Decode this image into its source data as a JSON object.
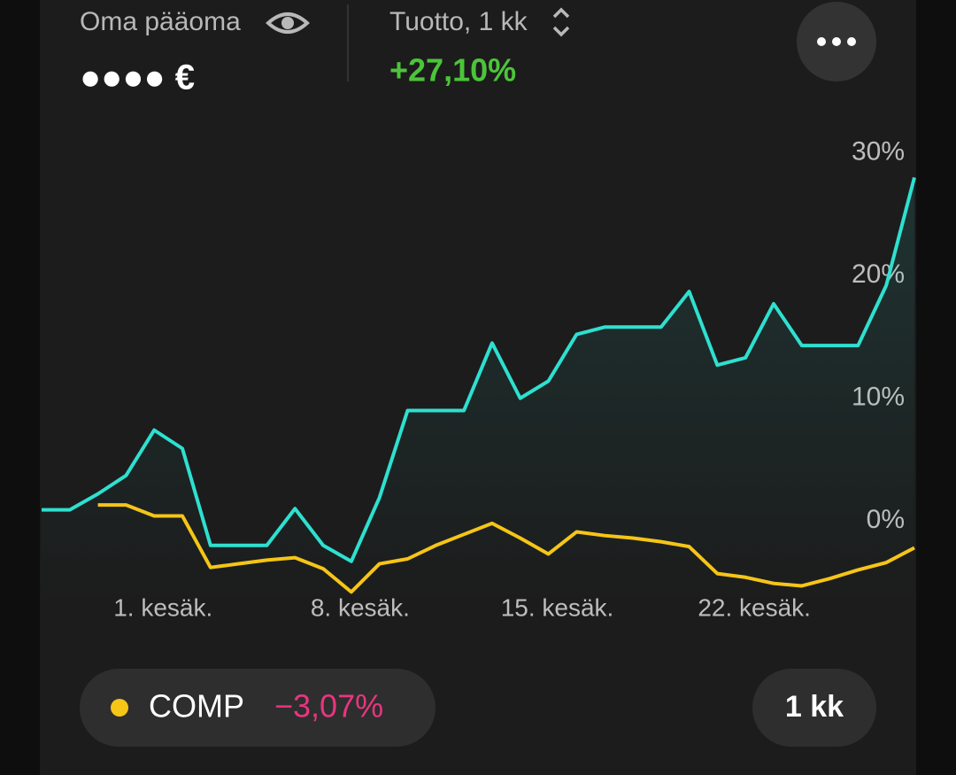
{
  "header": {
    "capital_label": "Oma pääoma",
    "capital_value": "●●●● €",
    "return_label": "Tuotto, 1 kk",
    "return_value": "+27,10%"
  },
  "chart_data": {
    "type": "line",
    "categories": [
      null,
      null,
      null,
      null,
      "1. kesäk.",
      null,
      null,
      null,
      null,
      null,
      null,
      "8. kesäk.",
      null,
      null,
      null,
      null,
      null,
      null,
      "15. kesäk.",
      null,
      null,
      null,
      null,
      null,
      null,
      "22. kesäk.",
      null,
      null,
      null,
      null,
      null,
      null
    ],
    "series": [
      {
        "color": "#2ee0d0",
        "values": [
          0.9,
          0.9,
          2.2,
          3.7,
          7.4,
          5.9,
          -2.0,
          -2.0,
          -2.0,
          1.0,
          -2.0,
          -3.3,
          1.9,
          9.0,
          9.0,
          9.0,
          14.5,
          10.0,
          11.4,
          15.2,
          15.8,
          15.8,
          15.8,
          18.7,
          12.7,
          13.3,
          17.7,
          14.3,
          14.3,
          14.3,
          19.2,
          28.0
        ]
      },
      {
        "name": "COMP",
        "color": "#f5c518",
        "values": [
          null,
          null,
          1.3,
          1.3,
          0.4,
          0.4,
          -3.8,
          -3.5,
          -3.2,
          -3.0,
          -3.9,
          -5.8,
          -3.5,
          -3.1,
          -2.0,
          -1.1,
          -0.2,
          -1.4,
          -2.7,
          -0.9,
          -1.2,
          -1.4,
          -1.7,
          -2.1,
          -4.3,
          -4.6,
          -5.1,
          -5.3,
          -4.7,
          -4.0,
          -3.4,
          -2.2
        ]
      }
    ],
    "ylim": [
      -7,
      32
    ],
    "yticks": [
      {
        "value": 0,
        "label": "0%"
      },
      {
        "value": 10,
        "label": "10%"
      },
      {
        "value": 20,
        "label": "20%"
      },
      {
        "value": 30,
        "label": "30%"
      }
    ],
    "legend_change": "−3,07%"
  },
  "period_button": "1 kk"
}
